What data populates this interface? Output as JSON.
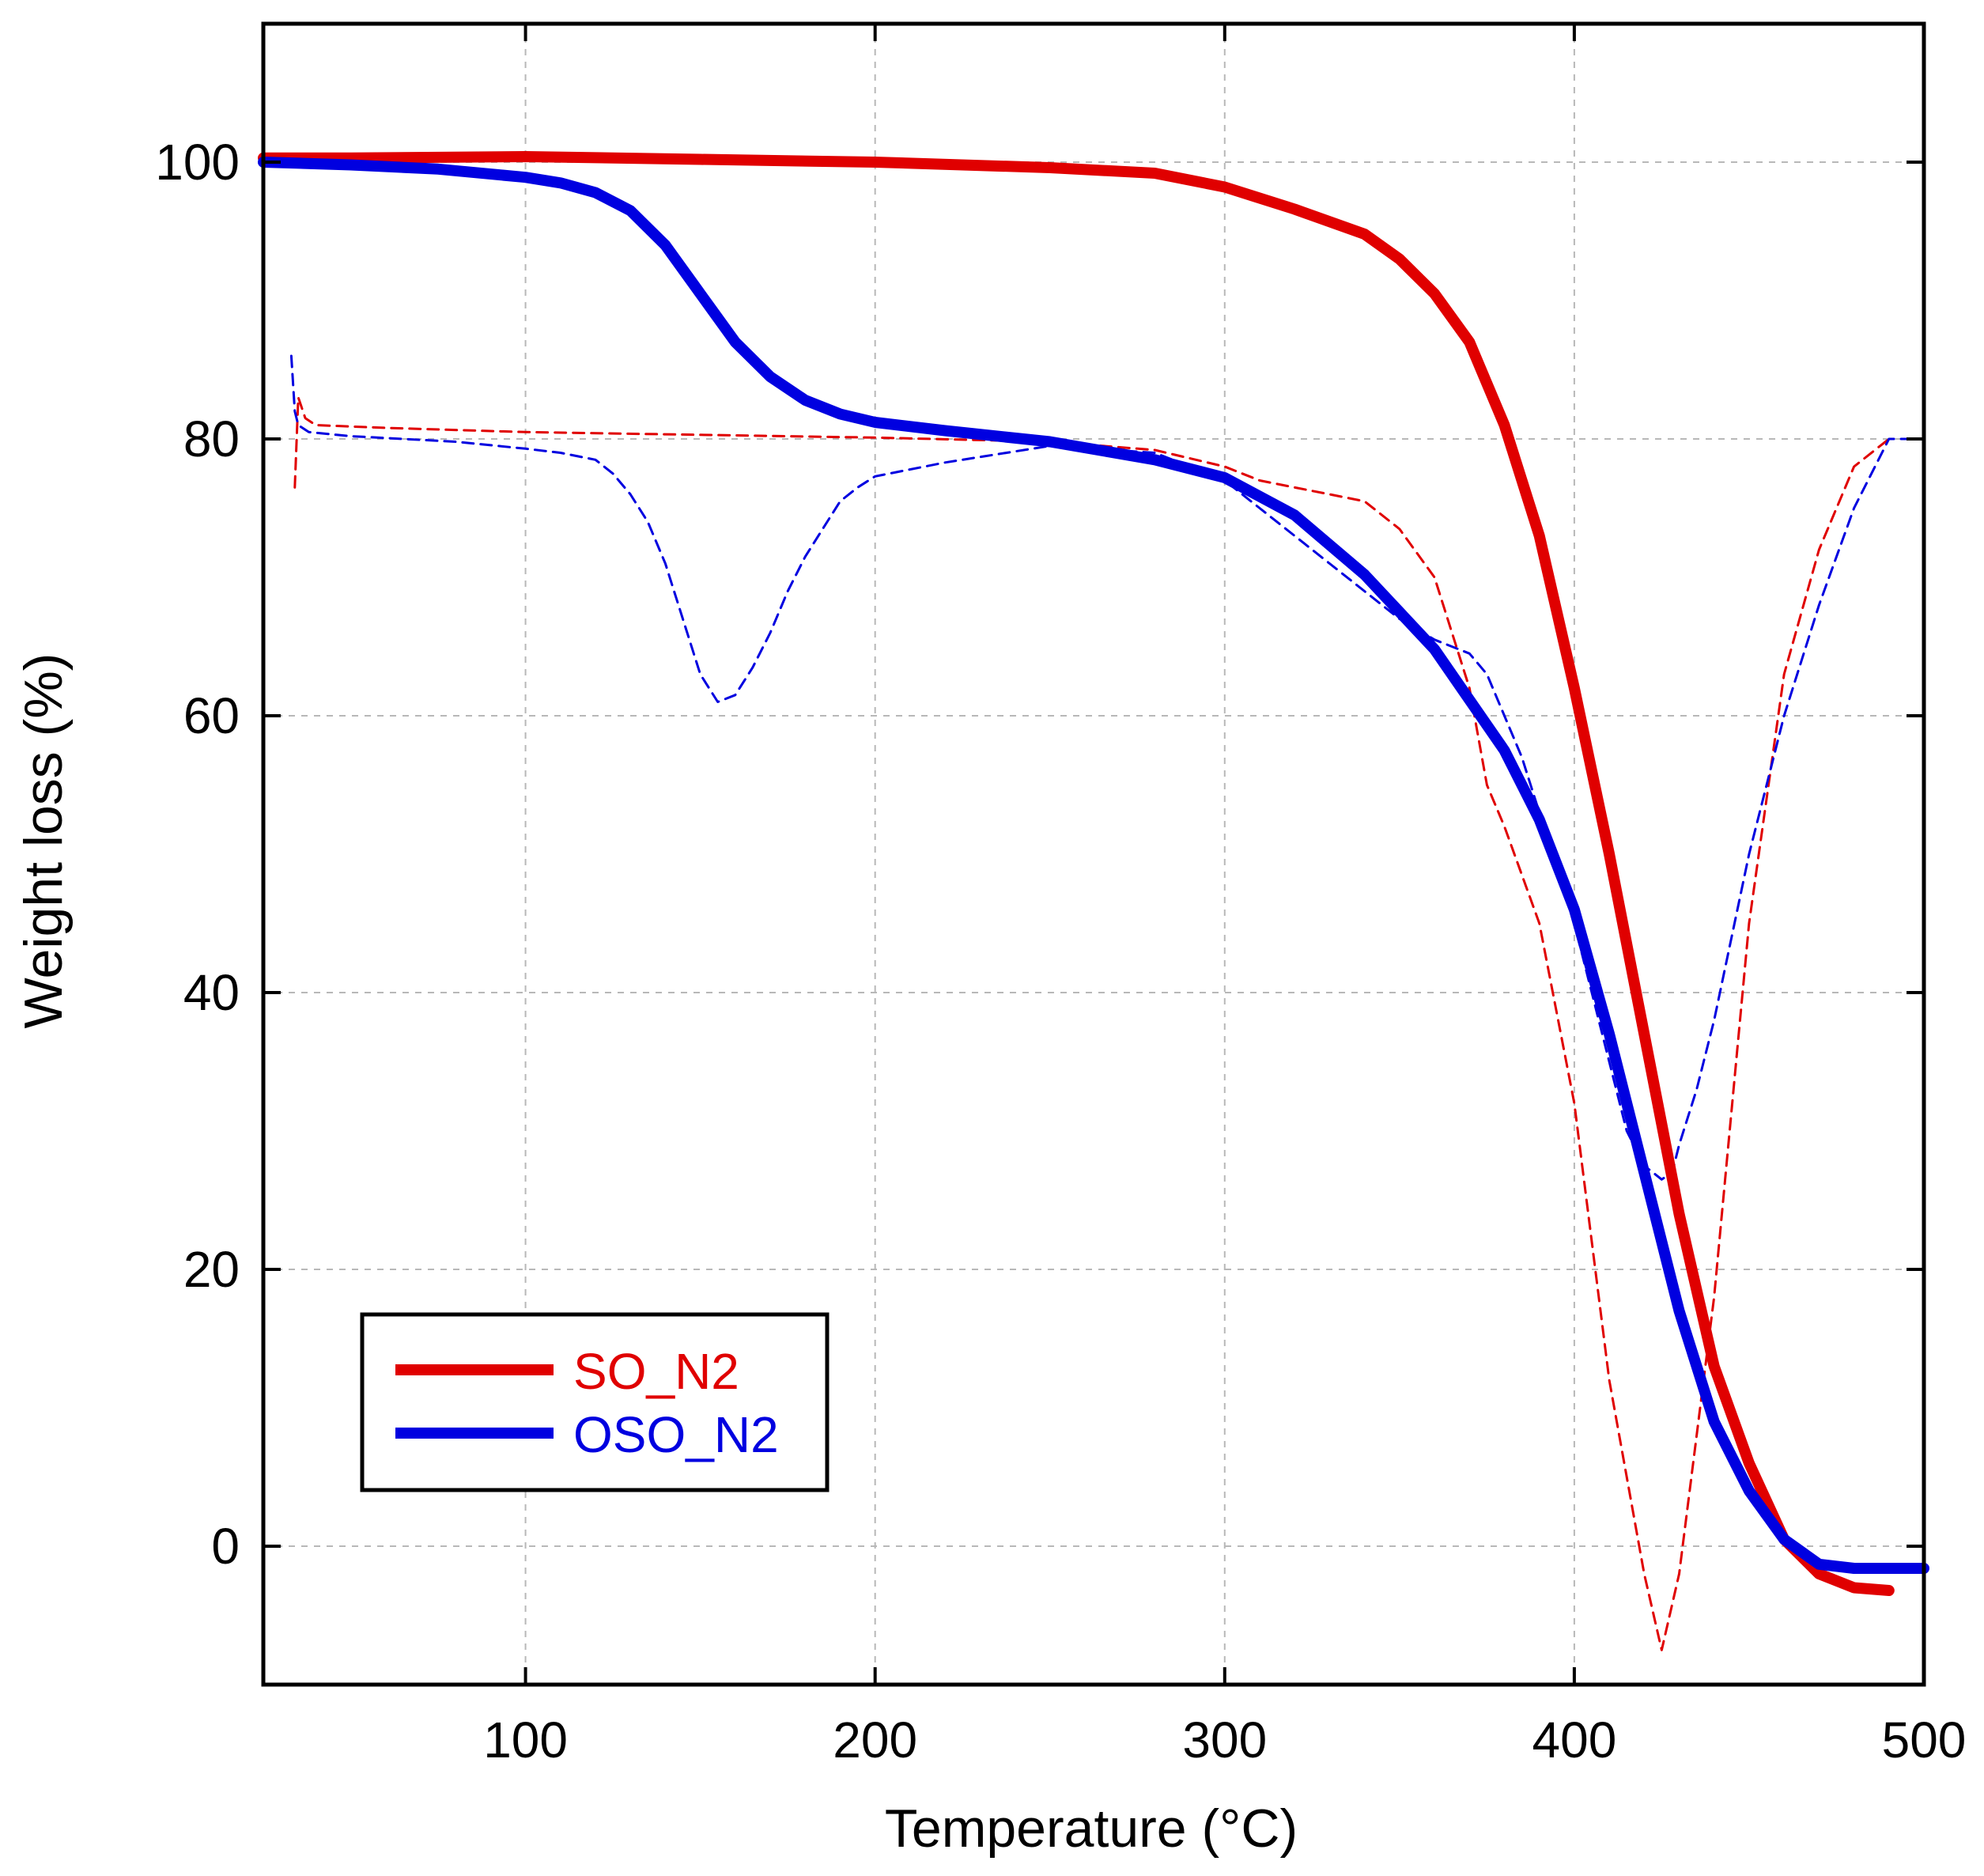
{
  "chart_data": {
    "type": "line",
    "title": "",
    "xlabel": "Temperature (°C)",
    "ylabel": "Weight loss (%)",
    "xlim": [
      25,
      500
    ],
    "ylim": [
      -10,
      110
    ],
    "xticks": [
      100,
      200,
      300,
      400,
      500
    ],
    "yticks": [
      0,
      20,
      40,
      60,
      80,
      100
    ],
    "xtick_labels": [
      "100",
      "200",
      "300",
      "400",
      "500"
    ],
    "ytick_labels": [
      "0",
      "20",
      "40",
      "60",
      "80",
      "100"
    ],
    "grid": true,
    "legend_position": "bottom-left",
    "colors": {
      "SO_N2": "#e00000",
      "OSO_N2": "#0000e0"
    },
    "series": [
      {
        "name": "SO_N2",
        "label": "SO_N2",
        "style": "solid",
        "color": "#e00000",
        "in_legend": true,
        "x": [
          25,
          50,
          100,
          150,
          200,
          250,
          280,
          300,
          320,
          340,
          350,
          360,
          370,
          380,
          390,
          400,
          410,
          420,
          430,
          440,
          450,
          460,
          470,
          480,
          490
        ],
        "y": [
          100.3,
          100.3,
          100.4,
          100.2,
          100.0,
          99.6,
          99.2,
          98.2,
          96.6,
          94.8,
          93.0,
          90.5,
          87.0,
          81.0,
          73.0,
          62.0,
          50.0,
          37.0,
          24.0,
          13.0,
          6.0,
          0.5,
          -2.0,
          -3.0,
          -3.2
        ]
      },
      {
        "name": "OSO_N2",
        "label": "OSO_N2",
        "style": "solid",
        "color": "#0000e0",
        "in_legend": true,
        "x": [
          25,
          50,
          75,
          100,
          110,
          120,
          130,
          140,
          150,
          160,
          170,
          180,
          190,
          200,
          220,
          250,
          280,
          300,
          320,
          340,
          360,
          380,
          390,
          400,
          410,
          420,
          430,
          440,
          450,
          460,
          470,
          480,
          490,
          500
        ],
        "y": [
          100.0,
          99.8,
          99.5,
          98.9,
          98.5,
          97.8,
          96.5,
          94.0,
          90.5,
          87.0,
          84.5,
          82.8,
          81.8,
          81.2,
          80.6,
          79.8,
          78.5,
          77.2,
          74.5,
          70.2,
          64.8,
          57.5,
          52.5,
          46.0,
          37.0,
          27.0,
          17.0,
          9.0,
          4.0,
          0.5,
          -1.3,
          -1.6,
          -1.6,
          -1.6
        ]
      },
      {
        "name": "SO_N2 derivative",
        "style": "dashed",
        "color": "#e00000",
        "in_legend": false,
        "x": [
          34,
          35,
          37,
          40,
          60,
          100,
          150,
          200,
          250,
          280,
          300,
          310,
          320,
          330,
          340,
          350,
          360,
          370,
          375,
          380,
          390,
          400,
          405,
          410,
          420,
          425,
          430,
          440,
          450,
          460,
          470,
          480,
          490
        ],
        "y": [
          76.5,
          83.0,
          81.5,
          81.0,
          80.8,
          80.5,
          80.3,
          80.1,
          79.8,
          79.2,
          78.0,
          77.0,
          76.5,
          76.0,
          75.5,
          73.5,
          70.0,
          62.0,
          55.0,
          52.0,
          45.0,
          32.0,
          22.0,
          12.0,
          -2.0,
          -7.5,
          -2.0,
          18.0,
          45.0,
          63.0,
          72.0,
          78.0,
          80.0
        ]
      },
      {
        "name": "OSO_N2 derivative",
        "style": "dashed",
        "color": "#0000e0",
        "in_legend": false,
        "x": [
          33,
          34,
          35,
          38,
          50,
          80,
          100,
          110,
          120,
          125,
          130,
          135,
          140,
          145,
          150,
          155,
          160,
          165,
          170,
          175,
          180,
          185,
          190,
          195,
          200,
          220,
          250,
          280,
          300,
          310,
          320,
          330,
          340,
          350,
          360,
          370,
          375,
          380,
          385,
          390,
          395,
          400,
          405,
          410,
          415,
          420,
          425,
          428,
          430,
          435,
          440,
          445,
          450,
          455,
          460,
          470,
          480,
          490,
          500
        ],
        "y": [
          86.0,
          82.0,
          81.0,
          80.5,
          80.2,
          79.8,
          79.3,
          79.0,
          78.5,
          77.5,
          76.0,
          74.0,
          71.0,
          67.0,
          63.0,
          61.0,
          61.5,
          63.5,
          66.0,
          69.0,
          71.5,
          73.5,
          75.5,
          76.5,
          77.3,
          78.3,
          79.5,
          79.0,
          77.0,
          75.0,
          73.0,
          71.0,
          69.0,
          67.0,
          65.5,
          64.5,
          63.0,
          60.0,
          57.0,
          53.0,
          49.0,
          45.0,
          40.0,
          35.0,
          30.0,
          27.5,
          26.5,
          27.0,
          29.0,
          33.0,
          38.0,
          44.0,
          50.0,
          55.0,
          60.0,
          68.0,
          75.0,
          80.0,
          80.0
        ]
      }
    ]
  }
}
